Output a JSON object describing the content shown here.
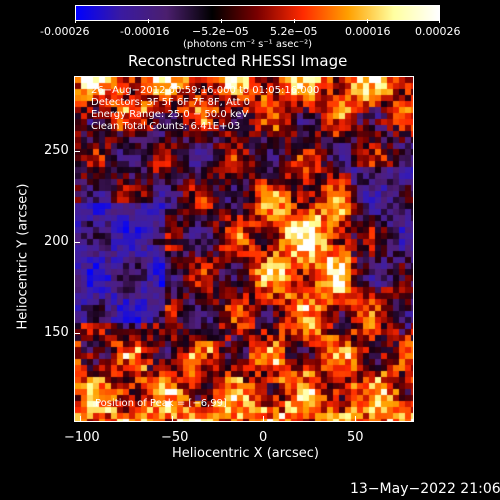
{
  "colorbar": {
    "tick_labels": [
      "-0.00026",
      "-0.00016",
      "−5.2e−05",
      "5.2e−05",
      "0.00016",
      "0.00026"
    ],
    "unit_label": "(photons cm⁻² s⁻¹ asec⁻²)",
    "colors": [
      "#0000ff",
      "#3a1aa0",
      "#4b1f6e",
      "#000000",
      "#7a0000",
      "#ff2a00",
      "#ffa000",
      "#ffffa0",
      "#ffffff"
    ]
  },
  "plot": {
    "title": "Reconstructed RHESSI Image",
    "info": {
      "time": "26−Aug−2012 00:59:16.000 to 01:05:16.000",
      "detectors": "Detectors: 3F 5F 6F 7F 8F, Att 0",
      "energy": "Energy Range: 25.0 − 50.0 keV",
      "clean": "Clean    Total Counts: 6.41E+03"
    },
    "peak_label": "Position of Peak = [−6,99]"
  },
  "axes": {
    "xlabel": "Heliocentric X (arcsec)",
    "ylabel": "Heliocentric Y (arcsec)",
    "xticks": [
      "−100",
      "−50",
      "0",
      "50"
    ],
    "yticks": [
      "150",
      "200",
      "250"
    ]
  },
  "footer": {
    "timestamp": "13−May−2022 21:06"
  }
}
